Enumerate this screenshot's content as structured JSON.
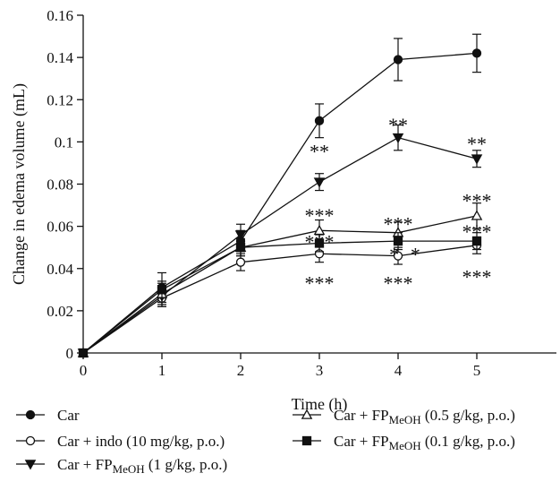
{
  "chart_data": {
    "type": "line",
    "xlabel": "Time (h)",
    "ylabel": "Change in edema volume (mL)",
    "xlim": [
      0,
      6
    ],
    "ylim": [
      0,
      0.16
    ],
    "x_ticks": [
      "0",
      "1",
      "2",
      "3",
      "4",
      "5"
    ],
    "y_ticks": [
      "0",
      "0.02",
      "0.04",
      "0.06",
      "0.08",
      "0.1",
      "0.12",
      "0.14",
      "0.16"
    ],
    "grid": false,
    "legend_position": "bottom",
    "x": [
      0,
      1,
      2,
      3,
      4,
      5
    ],
    "series": [
      {
        "name": "Car",
        "marker": "filled-circle",
        "values": [
          0,
          0.031,
          0.053,
          0.11,
          0.139,
          0.142
        ],
        "errors": [
          0,
          0.007,
          0.005,
          0.008,
          0.01,
          0.009
        ]
      },
      {
        "name": "Car + indo (10 mg/kg, p.o.)",
        "marker": "open-circle",
        "values": [
          0,
          0.026,
          0.043,
          0.047,
          0.046,
          0.051
        ],
        "errors": [
          0,
          0.004,
          0.004,
          0.004,
          0.004,
          0.004
        ]
      },
      {
        "name": "Car + FP_MeOH (1 g/kg, p.o.)",
        "marker": "filled-triangle-down",
        "values": [
          0,
          0.027,
          0.056,
          0.081,
          0.102,
          0.092
        ],
        "errors": [
          0,
          0.005,
          0.005,
          0.004,
          0.006,
          0.004
        ]
      },
      {
        "name": "Car + FP_MeOH (0.5 g/kg, p.o.)",
        "marker": "open-triangle-up",
        "values": [
          0,
          0.028,
          0.05,
          0.058,
          0.057,
          0.065
        ],
        "errors": [
          0,
          0.005,
          0.004,
          0.005,
          0.005,
          0.006
        ]
      },
      {
        "name": "Car + FP_MeOH (0.1 g/kg, p.o.)",
        "marker": "filled-square",
        "values": [
          0,
          0.03,
          0.05,
          0.052,
          0.053,
          0.053
        ],
        "errors": [
          0,
          0.004,
          0.004,
          0.004,
          0.004,
          0.004
        ]
      }
    ],
    "annotations": [
      {
        "x": 3,
        "y": 0.0975,
        "text": "**"
      },
      {
        "x": 4,
        "y": 0.11,
        "text": "**"
      },
      {
        "x": 5,
        "y": 0.101,
        "text": "**"
      },
      {
        "x": 3,
        "y": 0.067,
        "text": "***"
      },
      {
        "x": 4,
        "y": 0.063,
        "text": "***"
      },
      {
        "x": 5,
        "y": 0.074,
        "text": "***"
      },
      {
        "x": 3,
        "y": 0.0545,
        "text": "***"
      },
      {
        "x": 3.95,
        "y": 0.0485,
        "text": "* "
      },
      {
        "x": 4.22,
        "y": 0.0485,
        "text": "*"
      },
      {
        "x": 5,
        "y": 0.0595,
        "text": "***"
      },
      {
        "x": 3,
        "y": 0.035,
        "text": "***"
      },
      {
        "x": 4,
        "y": 0.035,
        "text": "***"
      },
      {
        "x": 5,
        "y": 0.038,
        "text": "***"
      }
    ],
    "legend": [
      {
        "label": "Car",
        "marker": "filled-circle"
      },
      {
        "label": "Car + indo (10 mg/kg, p.o.)",
        "marker": "open-circle"
      },
      {
        "label": "Car + FP",
        "sub": "MeOH",
        "suffix": " (1 g/kg, p.o.)",
        "marker": "filled-triangle-down"
      },
      {
        "label": "Car + FP",
        "sub": "MeOH",
        "suffix": " (0.5 g/kg, p.o.)",
        "marker": "open-triangle-up"
      },
      {
        "label": "Car + FP",
        "sub": "MeOH",
        "suffix": " (0.1 g/kg, p.o.)",
        "marker": "filled-square"
      }
    ]
  }
}
